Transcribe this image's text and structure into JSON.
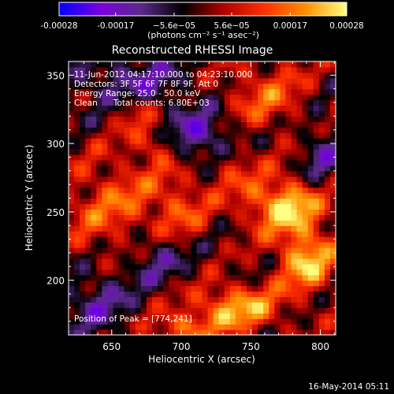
{
  "chart_data": {
    "type": "heatmap",
    "title": "Reconstructed RHESSI Image",
    "xlabel": "Heliocentric X (arcsec)",
    "ylabel": "Heliocentric Y (arcsec)",
    "xlim": [
      619,
      811
    ],
    "ylim": [
      160,
      360
    ],
    "x_ticks": [
      650,
      700,
      750,
      800
    ],
    "y_ticks": [
      200,
      250,
      300,
      350
    ],
    "colorbar": {
      "range": [
        -0.00028,
        0.00028
      ],
      "tick_values": [
        -0.00028,
        -0.00017,
        -5.6e-05,
        5.6e-05,
        0.00017,
        0.00028
      ],
      "tick_labels": [
        "-0.00028",
        "-0.00017",
        "−5.6e−05",
        "5.6e−05",
        "0.00017",
        "0.00028"
      ],
      "units": "(photons cm⁻² s⁻¹ asec⁻²)",
      "colors": [
        "#0000ff",
        "#7a00e0",
        "#5a2a8a",
        "#000000",
        "#b00000",
        "#ff3000",
        "#ff9000",
        "#ffff80"
      ]
    },
    "annotations": [
      "11-Jun-2012 04:17:10.000 to 04:23:10.000",
      "Detectors: 3F 5F 6F 7F 8F 9F, Att 0",
      "Energy Range: 25.0 - 50.0 keV",
      "Clean      Total counts: 6.80E+03"
    ],
    "peak_label": "Position of Peak = [774,241]",
    "peak": [
      774,
      241
    ],
    "grid_cells": [
      48,
      50
    ],
    "blobs": [
      {
        "x": 775,
        "y": 255,
        "sx": 20,
        "sy": 14,
        "a": 0.00026
      },
      {
        "x": 790,
        "y": 215,
        "sx": 14,
        "sy": 16,
        "a": 0.00024
      },
      {
        "x": 740,
        "y": 180,
        "sx": 22,
        "sy": 12,
        "a": 0.00022
      },
      {
        "x": 700,
        "y": 165,
        "sx": 16,
        "sy": 8,
        "a": 0.00015
      },
      {
        "x": 655,
        "y": 250,
        "sx": 28,
        "sy": 28,
        "a": 0.00014
      },
      {
        "x": 760,
        "y": 335,
        "sx": 22,
        "sy": 18,
        "a": 0.00013
      },
      {
        "x": 700,
        "y": 245,
        "sx": 14,
        "sy": 24,
        "a": 0.00011
      },
      {
        "x": 735,
        "y": 285,
        "sx": 14,
        "sy": 14,
        "a": 0.0001
      },
      {
        "x": 680,
        "y": 300,
        "sx": 10,
        "sy": 10,
        "a": 0.00011
      },
      {
        "x": 665,
        "y": 325,
        "sx": 10,
        "sy": 10,
        "a": 0.0001
      },
      {
        "x": 715,
        "y": 305,
        "sx": 18,
        "sy": 14,
        "a": -0.00018
      },
      {
        "x": 685,
        "y": 220,
        "sx": 20,
        "sy": 16,
        "a": -0.00016
      },
      {
        "x": 640,
        "y": 185,
        "sx": 18,
        "sy": 18,
        "a": -0.00012
      },
      {
        "x": 800,
        "y": 290,
        "sx": 10,
        "sy": 20,
        "a": -0.00011
      },
      {
        "x": 665,
        "y": 345,
        "sx": 28,
        "sy": 14,
        "a": -0.00013
      }
    ]
  },
  "footer": {
    "timestamp": "16-May-2014 05:11"
  }
}
